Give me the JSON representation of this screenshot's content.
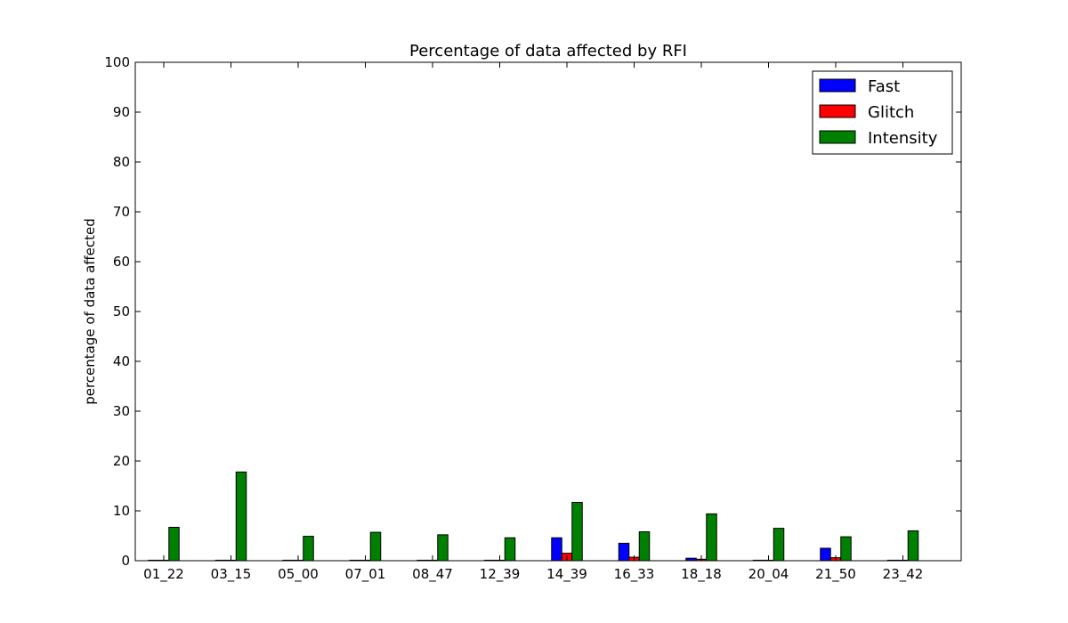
{
  "chart_data": {
    "type": "bar",
    "title": "Percentage of data affected by RFI",
    "xlabel": "",
    "ylabel": "percentage of data affected",
    "ylim": [
      0,
      100
    ],
    "yticks": [
      "0",
      "10",
      "20",
      "30",
      "40",
      "50",
      "60",
      "70",
      "80",
      "90",
      "100"
    ],
    "grid": false,
    "legend_position": "top-right",
    "categories": [
      "01_22",
      "03_15",
      "05_00",
      "07_01",
      "08_47",
      "12_39",
      "14_39",
      "16_33",
      "18_18",
      "20_04",
      "21_50",
      "23_42"
    ],
    "series": [
      {
        "name": "Fast",
        "color": "#0000ff",
        "values": [
          0.1,
          0.1,
          0.1,
          0.1,
          0.1,
          0.1,
          4.6,
          3.5,
          0.5,
          0.1,
          2.5,
          0.1
        ]
      },
      {
        "name": "Glitch",
        "color": "#ff0000",
        "values": [
          0.1,
          0.1,
          0.1,
          0.1,
          0.1,
          0.1,
          1.5,
          0.7,
          0.3,
          0.1,
          0.6,
          0.1
        ]
      },
      {
        "name": "Intensity",
        "color": "#008000",
        "values": [
          6.7,
          17.8,
          4.9,
          5.7,
          5.2,
          4.6,
          11.7,
          5.8,
          9.4,
          6.5,
          4.8,
          6.0
        ]
      }
    ]
  }
}
